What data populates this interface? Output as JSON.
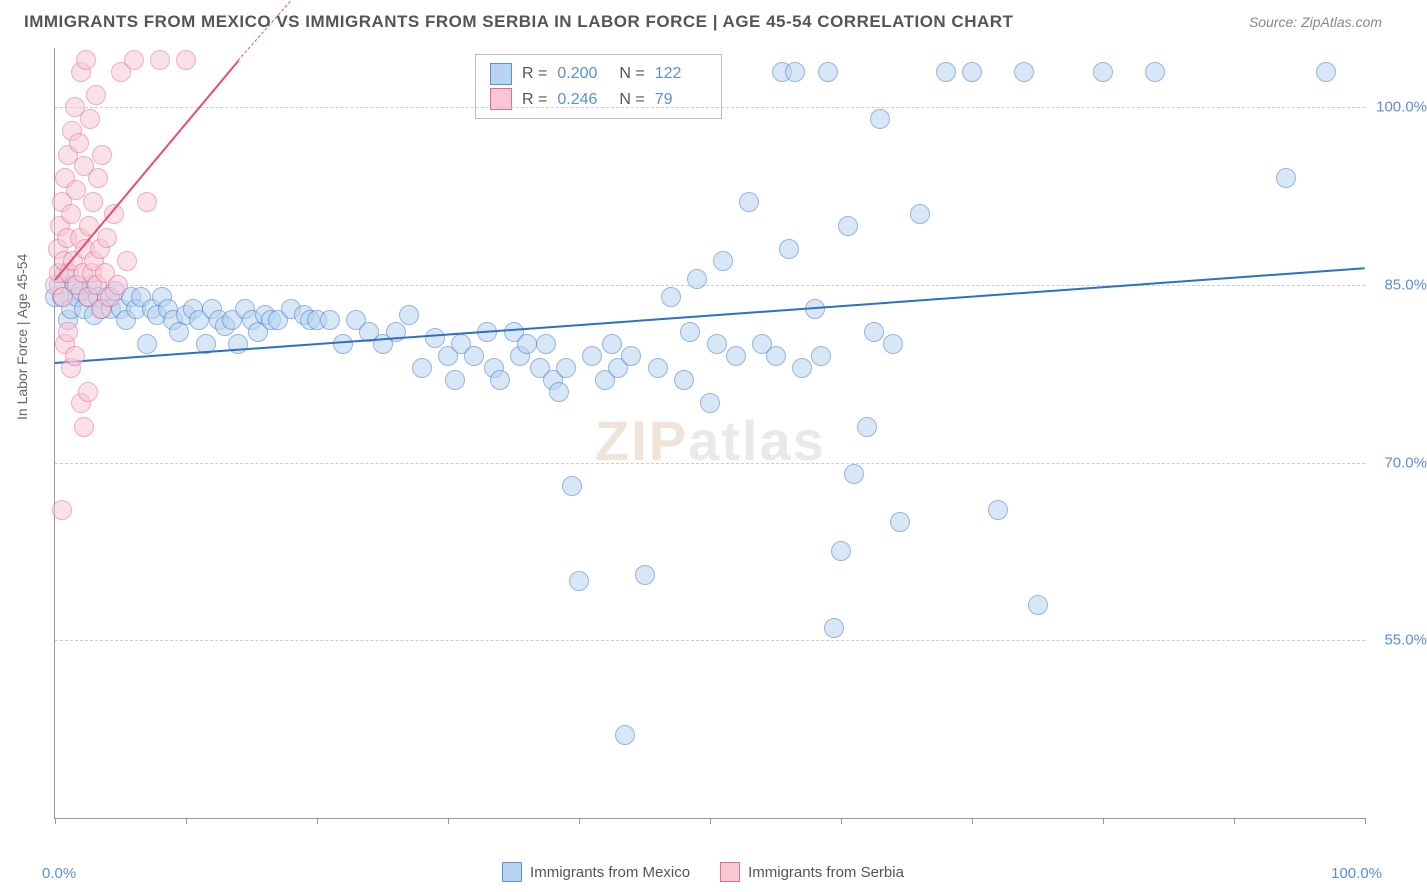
{
  "title": "IMMIGRANTS FROM MEXICO VS IMMIGRANTS FROM SERBIA IN LABOR FORCE | AGE 45-54 CORRELATION CHART",
  "source": "Source: ZipAtlas.com",
  "ylabel": "In Labor Force | Age 45-54",
  "watermark_z": "ZIP",
  "watermark_rest": "atlas",
  "xaxis": {
    "min": 0,
    "max": 100,
    "left_label": "0.0%",
    "right_label": "100.0%",
    "ticks": [
      0,
      10,
      20,
      30,
      40,
      50,
      60,
      70,
      80,
      90,
      100
    ]
  },
  "yaxis": {
    "min": 40,
    "max": 105,
    "ticks": [
      {
        "v": 55,
        "label": "55.0%"
      },
      {
        "v": 70,
        "label": "70.0%"
      },
      {
        "v": 85,
        "label": "85.0%"
      },
      {
        "v": 100,
        "label": "100.0%"
      }
    ]
  },
  "legend_x": [
    {
      "label": "Immigrants from Mexico",
      "fill": "#b9d4f0",
      "stroke": "#5b8fd6"
    },
    {
      "label": "Immigrants from Serbia",
      "fill": "#f7c7d4",
      "stroke": "#e86a8f"
    }
  ],
  "stats": [
    {
      "fill": "#b9d4f0",
      "stroke": "#5b8fd6",
      "r_label": "R =",
      "r": "0.200",
      "n_label": "N =",
      "n": "122"
    },
    {
      "fill": "#f7c7d4",
      "stroke": "#e86a8f",
      "r_label": "R =",
      "r": "0.246",
      "n_label": "N =",
      "n": "79"
    }
  ],
  "series": [
    {
      "name": "mexico",
      "marker_fill": "#b9d4f0",
      "marker_stroke": "#3f7ac9",
      "marker_size": 18,
      "fill_opacity": 0.55,
      "trend_color": "#2e6fc7",
      "trend": {
        "x1": 0,
        "y1": 78.5,
        "x2": 100,
        "y2": 86.5
      },
      "points": [
        [
          0,
          84
        ],
        [
          0.3,
          85
        ],
        [
          0.5,
          84
        ],
        [
          0.8,
          86
        ],
        [
          1,
          82
        ],
        [
          1.2,
          83
        ],
        [
          1.5,
          85
        ],
        [
          1.7,
          84
        ],
        [
          2,
          84.5
        ],
        [
          2.2,
          83
        ],
        [
          2.5,
          84
        ],
        [
          2.8,
          85
        ],
        [
          3,
          82.5
        ],
        [
          3.3,
          84
        ],
        [
          3.6,
          83
        ],
        [
          4,
          84
        ],
        [
          4.3,
          83
        ],
        [
          4.6,
          84.5
        ],
        [
          5,
          83
        ],
        [
          5.4,
          82
        ],
        [
          5.8,
          84
        ],
        [
          6.2,
          83
        ],
        [
          6.6,
          84
        ],
        [
          7,
          80
        ],
        [
          7.4,
          83
        ],
        [
          7.8,
          82.5
        ],
        [
          8.2,
          84
        ],
        [
          8.6,
          83
        ],
        [
          9,
          82
        ],
        [
          9.5,
          81
        ],
        [
          10,
          82.5
        ],
        [
          10.5,
          83
        ],
        [
          11,
          82
        ],
        [
          11.5,
          80
        ],
        [
          12,
          83
        ],
        [
          12.5,
          82
        ],
        [
          13,
          81.5
        ],
        [
          13.5,
          82
        ],
        [
          14,
          80
        ],
        [
          14.5,
          83
        ],
        [
          15,
          82
        ],
        [
          15.5,
          81
        ],
        [
          16,
          82.5
        ],
        [
          16.5,
          82
        ],
        [
          17,
          82
        ],
        [
          18,
          83
        ],
        [
          19,
          82.5
        ],
        [
          19.5,
          82
        ],
        [
          20,
          82
        ],
        [
          21,
          82
        ],
        [
          22,
          80
        ],
        [
          23,
          82
        ],
        [
          24,
          81
        ],
        [
          25,
          80
        ],
        [
          26,
          81
        ],
        [
          27,
          82.5
        ],
        [
          28,
          78
        ],
        [
          29,
          80.5
        ],
        [
          30,
          79
        ],
        [
          30.5,
          77
        ],
        [
          31,
          80
        ],
        [
          32,
          79
        ],
        [
          33,
          81
        ],
        [
          33.5,
          78
        ],
        [
          34,
          77
        ],
        [
          35,
          81
        ],
        [
          35.5,
          79
        ],
        [
          36,
          80
        ],
        [
          37,
          78
        ],
        [
          37.5,
          80
        ],
        [
          38,
          77
        ],
        [
          38.5,
          76
        ],
        [
          39,
          78
        ],
        [
          39.5,
          68
        ],
        [
          40,
          60
        ],
        [
          41,
          79
        ],
        [
          42,
          77
        ],
        [
          42.5,
          80
        ],
        [
          43,
          78
        ],
        [
          43.5,
          47
        ],
        [
          44,
          79
        ],
        [
          45,
          60.5
        ],
        [
          46,
          78
        ],
        [
          47,
          84
        ],
        [
          48,
          77
        ],
        [
          48.5,
          81
        ],
        [
          49,
          85.5
        ],
        [
          50,
          75
        ],
        [
          50.5,
          80
        ],
        [
          51,
          87
        ],
        [
          52,
          79
        ],
        [
          53,
          92
        ],
        [
          54,
          80
        ],
        [
          55,
          79
        ],
        [
          55.5,
          103
        ],
        [
          56,
          88
        ],
        [
          56.5,
          103
        ],
        [
          57,
          78
        ],
        [
          58,
          83
        ],
        [
          58.5,
          79
        ],
        [
          59,
          103
        ],
        [
          59.5,
          56
        ],
        [
          60,
          62.5
        ],
        [
          60.5,
          90
        ],
        [
          61,
          69
        ],
        [
          62,
          73
        ],
        [
          62.5,
          81
        ],
        [
          63,
          99
        ],
        [
          64,
          80
        ],
        [
          64.5,
          65
        ],
        [
          66,
          91
        ],
        [
          68,
          103
        ],
        [
          70,
          103
        ],
        [
          72,
          66
        ],
        [
          74,
          103
        ],
        [
          75,
          58
        ],
        [
          80,
          103
        ],
        [
          84,
          103
        ],
        [
          94,
          94
        ],
        [
          97,
          103
        ]
      ]
    },
    {
      "name": "serbia",
      "marker_fill": "#f7c7d4",
      "marker_stroke": "#e86a8f",
      "marker_size": 18,
      "fill_opacity": 0.55,
      "trend_color": "#e94b76",
      "trend": {
        "x1": 0,
        "y1": 85.5,
        "x2": 14,
        "y2": 104
      },
      "trend_dash": {
        "x1": 14,
        "y1": 104,
        "x2": 18,
        "y2": 109
      },
      "points": [
        [
          0,
          85
        ],
        [
          0.2,
          88
        ],
        [
          0.3,
          86
        ],
        [
          0.4,
          90
        ],
        [
          0.5,
          92
        ],
        [
          0.6,
          84
        ],
        [
          0.7,
          87
        ],
        [
          0.8,
          94
        ],
        [
          0.9,
          89
        ],
        [
          1,
          96
        ],
        [
          1.1,
          86
        ],
        [
          1.2,
          91
        ],
        [
          1.3,
          98
        ],
        [
          1.4,
          87
        ],
        [
          1.5,
          100
        ],
        [
          1.6,
          93
        ],
        [
          1.7,
          85
        ],
        [
          1.8,
          97
        ],
        [
          1.9,
          89
        ],
        [
          2,
          103
        ],
        [
          2.1,
          86
        ],
        [
          2.2,
          95
        ],
        [
          2.3,
          88
        ],
        [
          2.4,
          104
        ],
        [
          2.5,
          84
        ],
        [
          2.6,
          90
        ],
        [
          2.7,
          99
        ],
        [
          2.8,
          86
        ],
        [
          2.9,
          92
        ],
        [
          3,
          87
        ],
        [
          3.1,
          101
        ],
        [
          3.2,
          85
        ],
        [
          3.3,
          94
        ],
        [
          3.4,
          88
        ],
        [
          3.5,
          83
        ],
        [
          3.6,
          96
        ],
        [
          3.8,
          86
        ],
        [
          4,
          89
        ],
        [
          4.2,
          84
        ],
        [
          4.5,
          91
        ],
        [
          4.8,
          85
        ],
        [
          5,
          103
        ],
        [
          5.5,
          87
        ],
        [
          6,
          104
        ],
        [
          7,
          92
        ],
        [
          8,
          104
        ],
        [
          10,
          104
        ],
        [
          0.5,
          66
        ],
        [
          0.8,
          80
        ],
        [
          1,
          81
        ],
        [
          1.2,
          78
        ],
        [
          1.5,
          79
        ],
        [
          2,
          75
        ],
        [
          2.2,
          73
        ],
        [
          2.5,
          76
        ]
      ]
    }
  ]
}
